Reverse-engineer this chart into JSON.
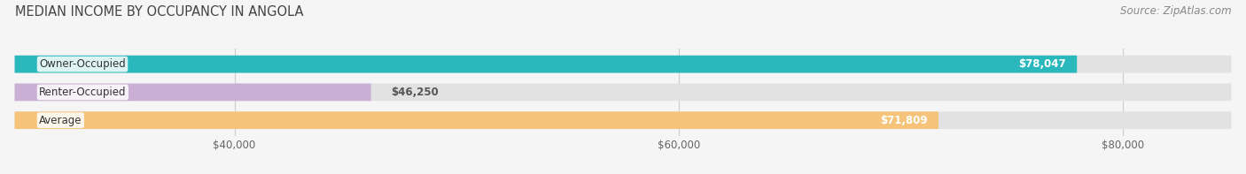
{
  "title": "MEDIAN INCOME BY OCCUPANCY IN ANGOLA",
  "source": "Source: ZipAtlas.com",
  "categories": [
    "Owner-Occupied",
    "Renter-Occupied",
    "Average"
  ],
  "values": [
    78047,
    46250,
    71809
  ],
  "bar_colors": [
    "#2ab8bc",
    "#c9afd4",
    "#f5c47a"
  ],
  "label_values": [
    "$78,047",
    "$46,250",
    "$71,809"
  ],
  "xlim": [
    30000,
    85000
  ],
  "xticks": [
    40000,
    60000,
    80000
  ],
  "xtick_labels": [
    "$40,000",
    "$60,000",
    "$80,000"
  ],
  "background_color": "#f5f5f5",
  "bar_background_color": "#e2e2e2",
  "title_fontsize": 10.5,
  "source_fontsize": 8.5,
  "label_fontsize": 8.5,
  "xtick_fontsize": 8.5
}
